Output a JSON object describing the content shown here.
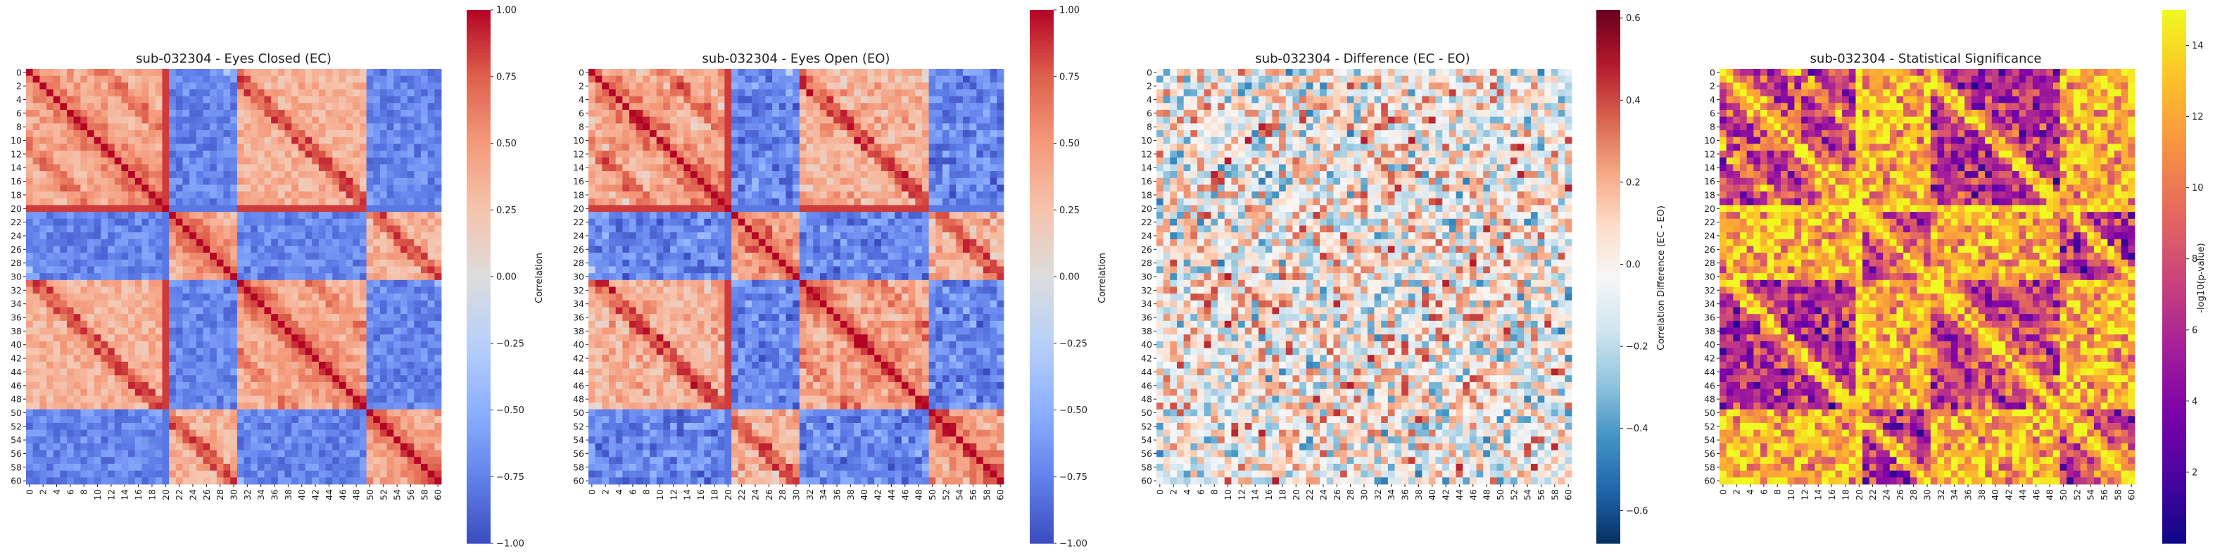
{
  "chart_data": [
    {
      "type": "heatmap",
      "title": "sub-032304 - Eyes Closed (EC)",
      "colormap": "coolwarm",
      "n": 61,
      "colorbar": {
        "label": "Correlation",
        "vmin": -1.0,
        "vmax": 1.0,
        "ticks": [
          "1.00",
          "0.75",
          "0.50",
          "0.25",
          "0.00",
          "−0.25",
          "−0.50",
          "−0.75",
          "−1.00"
        ],
        "tick_values": [
          1.0,
          0.75,
          0.5,
          0.25,
          0.0,
          -0.25,
          -0.5,
          -0.75,
          -1.0
        ]
      },
      "tick_labels": [
        "0",
        "2",
        "4",
        "6",
        "8",
        "10",
        "12",
        "14",
        "16",
        "18",
        "20",
        "22",
        "24",
        "26",
        "28",
        "30",
        "32",
        "34",
        "36",
        "38",
        "40",
        "42",
        "44",
        "46",
        "48",
        "50",
        "52",
        "54",
        "56",
        "58",
        "60"
      ]
    },
    {
      "type": "heatmap",
      "title": "sub-032304 - Eyes Open (EO)",
      "colormap": "coolwarm",
      "n": 61,
      "colorbar": {
        "label": "Correlation",
        "vmin": -1.0,
        "vmax": 1.0,
        "ticks": [
          "1.00",
          "0.75",
          "0.50",
          "0.25",
          "0.00",
          "−0.25",
          "−0.50",
          "−0.75",
          "−1.00"
        ],
        "tick_values": [
          1.0,
          0.75,
          0.5,
          0.25,
          0.0,
          -0.25,
          -0.5,
          -0.75,
          -1.0
        ]
      },
      "tick_labels": [
        "0",
        "2",
        "4",
        "6",
        "8",
        "10",
        "12",
        "14",
        "16",
        "18",
        "20",
        "22",
        "24",
        "26",
        "28",
        "30",
        "32",
        "34",
        "36",
        "38",
        "40",
        "42",
        "44",
        "46",
        "48",
        "50",
        "52",
        "54",
        "56",
        "58",
        "60"
      ]
    },
    {
      "type": "heatmap",
      "title": "sub-032304 - Difference (EC - EO)",
      "colormap": "RdBu_r",
      "n": 61,
      "colorbar": {
        "label": "Correlation Difference (EC - EO)",
        "vmin": -0.68,
        "vmax": 0.62,
        "ticks": [
          "0.6",
          "0.4",
          "0.2",
          "0.0",
          "−0.2",
          "−0.4",
          "−0.6"
        ],
        "tick_values": [
          0.6,
          0.4,
          0.2,
          0.0,
          -0.2,
          -0.4,
          -0.6
        ]
      },
      "tick_labels": [
        "0",
        "2",
        "4",
        "6",
        "8",
        "10",
        "12",
        "14",
        "16",
        "18",
        "20",
        "22",
        "24",
        "26",
        "28",
        "30",
        "32",
        "34",
        "36",
        "38",
        "40",
        "42",
        "44",
        "46",
        "48",
        "50",
        "52",
        "54",
        "56",
        "58",
        "60"
      ]
    },
    {
      "type": "heatmap",
      "title": "sub-032304 - Statistical Significance",
      "colormap": "plasma",
      "n": 61,
      "colorbar": {
        "label": "-log10(p-value)",
        "vmin": 0.0,
        "vmax": 15.0,
        "ticks": [
          "14",
          "12",
          "10",
          "8",
          "6",
          "4",
          "2"
        ],
        "tick_values": [
          14,
          12,
          10,
          8,
          6,
          4,
          2
        ]
      },
      "tick_labels": [
        "0",
        "2",
        "4",
        "6",
        "8",
        "10",
        "12",
        "14",
        "16",
        "18",
        "20",
        "22",
        "24",
        "26",
        "28",
        "30",
        "32",
        "34",
        "36",
        "38",
        "40",
        "42",
        "44",
        "46",
        "48",
        "50",
        "52",
        "54",
        "56",
        "58",
        "60"
      ]
    }
  ]
}
